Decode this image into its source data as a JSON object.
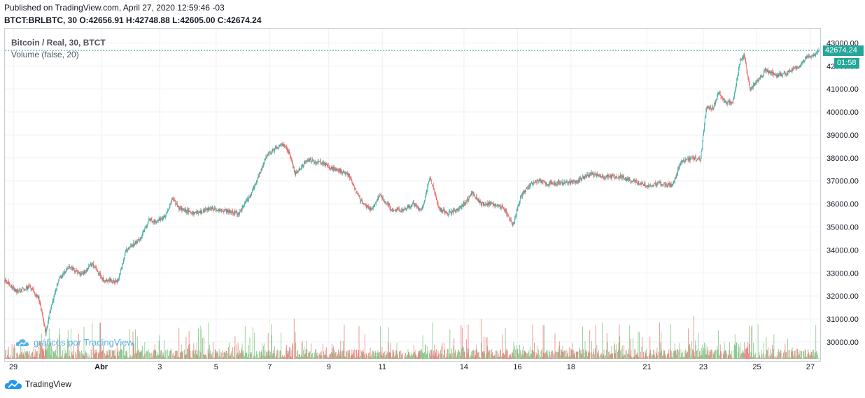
{
  "header": {
    "published": "Published on TradingView.com, April 27, 2020 12:59:46 -03",
    "ohlc": "BTCT:BRLBTC, 30 O:42656.91 H:42748.88 L:42605.00 C:42674.24"
  },
  "legend": {
    "title": "Bitcoin / Real, 30, BTCT",
    "volume": "Volume (false, 20)"
  },
  "watermark": "gráficos por TradingView",
  "brand": "TradingView",
  "last_price_label": "42674.24",
  "countdown_label": "01:58",
  "colors": {
    "up": "#26a69a",
    "down": "#ef5350",
    "up_volume": "#73bf7a",
    "down_volume": "#e56f6a",
    "grid": "#eef0f3",
    "accent": "#26a69a",
    "watermark": "#5ab0e2"
  },
  "chart_data": {
    "type": "candlestick",
    "interval": "30",
    "symbol": "BTCT:BRLBTC",
    "ylim": [
      29300,
      43200
    ],
    "y_ticks": [
      30000,
      31000,
      32000,
      33000,
      34000,
      35000,
      36000,
      37000,
      38000,
      39000,
      40000,
      41000,
      42000,
      43000
    ],
    "y_tick_labels": [
      "30000.00",
      "31000.00",
      "32000.00",
      "33000.00",
      "34000.00",
      "35000.00",
      "36000.00",
      "37000.00",
      "38000.00",
      "39000.00",
      "40000.00",
      "41000.00",
      "42000.00",
      "43000.00"
    ],
    "x_range": [
      0,
      28.95
    ],
    "x_ticks": [
      {
        "label": "29",
        "t": 0.3
      },
      {
        "label": "Abr",
        "t": 3.42
      },
      {
        "label": "3",
        "t": 5.5
      },
      {
        "label": "5",
        "t": 7.5
      },
      {
        "label": "7",
        "t": 9.4
      },
      {
        "label": "9",
        "t": 11.5
      },
      {
        "label": "11",
        "t": 13.4
      },
      {
        "label": "14",
        "t": 16.3
      },
      {
        "label": "16",
        "t": 18.2
      },
      {
        "label": "18",
        "t": 20.1
      },
      {
        "label": "21",
        "t": 22.8
      },
      {
        "label": "23",
        "t": 24.8
      },
      {
        "label": "25",
        "t": 26.7
      },
      {
        "label": "27",
        "t": 28.6
      }
    ],
    "price_path": [
      {
        "t": 0.0,
        "p": 32700
      },
      {
        "t": 0.4,
        "p": 32200
      },
      {
        "t": 0.9,
        "p": 32400
      },
      {
        "t": 1.2,
        "p": 31900
      },
      {
        "t": 1.45,
        "p": 30400
      },
      {
        "t": 1.6,
        "p": 31300
      },
      {
        "t": 1.9,
        "p": 32700
      },
      {
        "t": 2.3,
        "p": 33300
      },
      {
        "t": 2.7,
        "p": 32900
      },
      {
        "t": 3.1,
        "p": 33400
      },
      {
        "t": 3.5,
        "p": 32700
      },
      {
        "t": 4.0,
        "p": 32600
      },
      {
        "t": 4.3,
        "p": 34000
      },
      {
        "t": 4.8,
        "p": 34500
      },
      {
        "t": 5.1,
        "p": 35300
      },
      {
        "t": 5.4,
        "p": 35200
      },
      {
        "t": 5.7,
        "p": 35500
      },
      {
        "t": 5.95,
        "p": 36200
      },
      {
        "t": 6.2,
        "p": 35800
      },
      {
        "t": 6.7,
        "p": 35600
      },
      {
        "t": 7.3,
        "p": 35800
      },
      {
        "t": 7.9,
        "p": 35700
      },
      {
        "t": 8.3,
        "p": 35600
      },
      {
        "t": 8.7,
        "p": 36300
      },
      {
        "t": 9.0,
        "p": 37200
      },
      {
        "t": 9.3,
        "p": 38100
      },
      {
        "t": 9.6,
        "p": 38400
      },
      {
        "t": 9.9,
        "p": 38600
      },
      {
        "t": 10.1,
        "p": 38200
      },
      {
        "t": 10.3,
        "p": 37300
      },
      {
        "t": 10.7,
        "p": 37900
      },
      {
        "t": 11.2,
        "p": 37800
      },
      {
        "t": 11.7,
        "p": 37500
      },
      {
        "t": 12.2,
        "p": 37300
      },
      {
        "t": 12.6,
        "p": 36200
      },
      {
        "t": 13.0,
        "p": 35700
      },
      {
        "t": 13.3,
        "p": 36400
      },
      {
        "t": 13.7,
        "p": 35800
      },
      {
        "t": 14.1,
        "p": 35700
      },
      {
        "t": 14.5,
        "p": 36000
      },
      {
        "t": 14.8,
        "p": 35700
      },
      {
        "t": 15.1,
        "p": 37200
      },
      {
        "t": 15.4,
        "p": 35800
      },
      {
        "t": 15.7,
        "p": 35600
      },
      {
        "t": 16.0,
        "p": 35700
      },
      {
        "t": 16.3,
        "p": 36000
      },
      {
        "t": 16.6,
        "p": 36500
      },
      {
        "t": 16.9,
        "p": 36000
      },
      {
        "t": 17.3,
        "p": 36000
      },
      {
        "t": 17.7,
        "p": 35800
      },
      {
        "t": 18.05,
        "p": 35100
      },
      {
        "t": 18.3,
        "p": 36300
      },
      {
        "t": 18.6,
        "p": 36800
      },
      {
        "t": 18.9,
        "p": 37000
      },
      {
        "t": 19.3,
        "p": 36900
      },
      {
        "t": 19.8,
        "p": 36900
      },
      {
        "t": 20.3,
        "p": 37000
      },
      {
        "t": 20.8,
        "p": 37300
      },
      {
        "t": 21.3,
        "p": 37200
      },
      {
        "t": 21.8,
        "p": 37200
      },
      {
        "t": 22.3,
        "p": 37000
      },
      {
        "t": 22.8,
        "p": 36800
      },
      {
        "t": 23.3,
        "p": 36900
      },
      {
        "t": 23.7,
        "p": 36800
      },
      {
        "t": 24.0,
        "p": 37800
      },
      {
        "t": 24.4,
        "p": 38000
      },
      {
        "t": 24.7,
        "p": 37900
      },
      {
        "t": 24.9,
        "p": 40200
      },
      {
        "t": 25.15,
        "p": 40200
      },
      {
        "t": 25.35,
        "p": 40900
      },
      {
        "t": 25.55,
        "p": 40400
      },
      {
        "t": 25.85,
        "p": 40400
      },
      {
        "t": 26.1,
        "p": 42200
      },
      {
        "t": 26.25,
        "p": 42500
      },
      {
        "t": 26.45,
        "p": 41000
      },
      {
        "t": 26.7,
        "p": 41300
      },
      {
        "t": 27.0,
        "p": 41800
      },
      {
        "t": 27.4,
        "p": 41600
      },
      {
        "t": 27.8,
        "p": 41700
      },
      {
        "t": 28.2,
        "p": 42000
      },
      {
        "t": 28.5,
        "p": 42400
      },
      {
        "t": 28.75,
        "p": 42500
      },
      {
        "t": 28.9,
        "p": 42674.24
      }
    ],
    "last_price": 42674.24,
    "last_ohlc": {
      "open": 42656.91,
      "high": 42748.88,
      "low": 42605.0,
      "close": 42674.24
    }
  }
}
